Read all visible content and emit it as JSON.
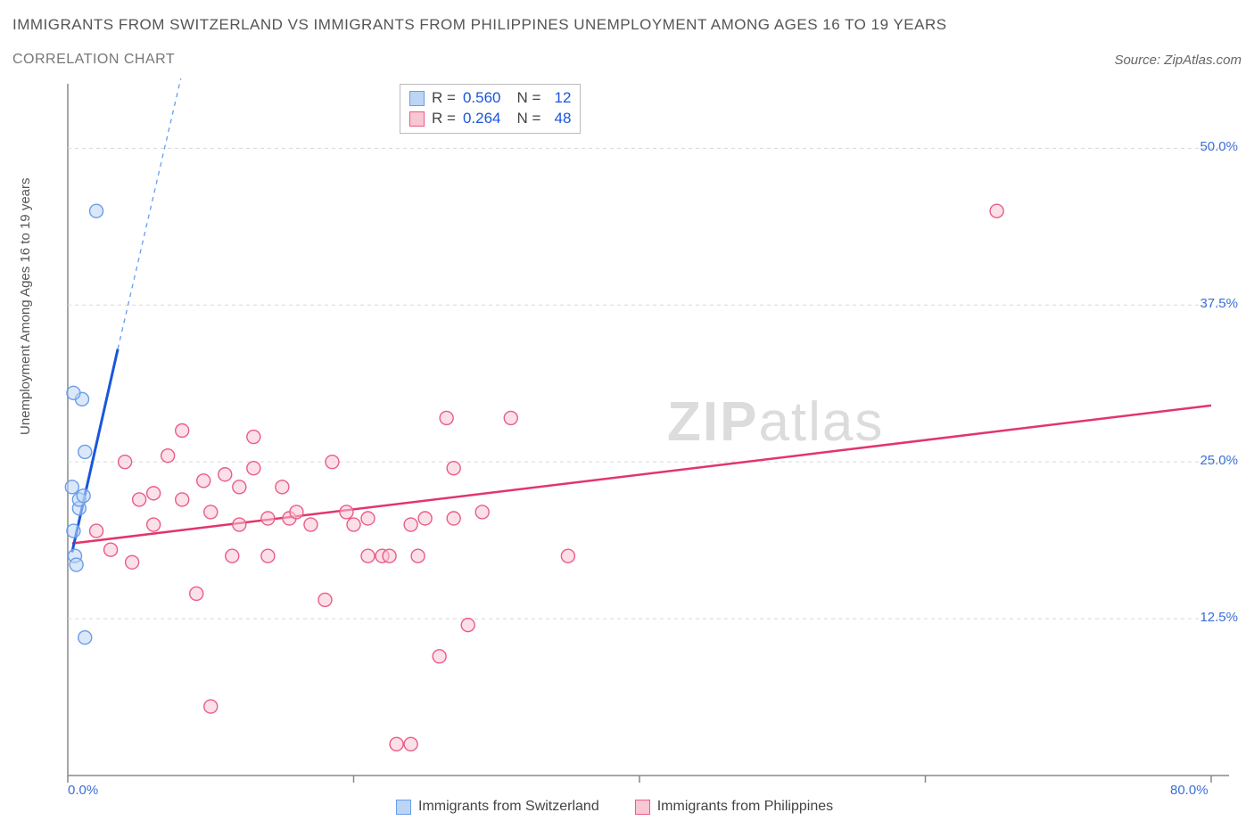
{
  "title": "IMMIGRANTS FROM SWITZERLAND VS IMMIGRANTS FROM PHILIPPINES UNEMPLOYMENT AMONG AGES 16 TO 19 YEARS",
  "subtitle": "CORRELATION CHART",
  "source_label": "Source: ZipAtlas.com",
  "y_axis_label": "Unemployment Among Ages 16 to 19 years",
  "watermark_bold": "ZIP",
  "watermark_light": "atlas",
  "chart": {
    "type": "scatter",
    "background": "#ffffff",
    "grid_color": "#d8d8d8",
    "axis_color": "#888888",
    "tick_color": "#888888",
    "label_color": "#3a6fd8",
    "xlim": [
      0,
      80
    ],
    "ylim": [
      0,
      55
    ],
    "x_ticks": [
      0,
      20,
      40,
      60,
      80
    ],
    "x_tick_labels": [
      "0.0%",
      "",
      "",
      "",
      "80.0%"
    ],
    "y_ticks": [
      12.5,
      25.0,
      37.5,
      50.0
    ],
    "y_tick_labels": [
      "12.5%",
      "25.0%",
      "37.5%",
      "50.0%"
    ],
    "marker_radius": 7.5,
    "marker_stroke_width": 1.4,
    "series": [
      {
        "name": "Immigrants from Switzerland",
        "fill": "#bcd5f5",
        "stroke": "#6a9de8",
        "fill_opacity": 0.55,
        "trend": {
          "color": "#1a56db",
          "width": 3,
          "dash_above_color": "#6a9de8",
          "x1": 0.3,
          "y1": 17.8,
          "x2": 3.5,
          "y2": 34.0,
          "dash_x2": 8.2,
          "dash_y2": 57.0
        },
        "r_label": "0.560",
        "n_label": "12",
        "points": [
          [
            0.5,
            17.5
          ],
          [
            0.4,
            19.5
          ],
          [
            0.8,
            21.3
          ],
          [
            0.8,
            22.0
          ],
          [
            1.1,
            22.3
          ],
          [
            0.3,
            23.0
          ],
          [
            1.2,
            25.8
          ],
          [
            1.0,
            30.0
          ],
          [
            0.4,
            30.5
          ],
          [
            2.0,
            45.0
          ],
          [
            1.2,
            11.0
          ],
          [
            0.6,
            16.8
          ]
        ]
      },
      {
        "name": "Immigrants from Philippines",
        "fill": "#f7c7d4",
        "stroke": "#ea5b8a",
        "fill_opacity": 0.55,
        "trend": {
          "color": "#e3356b",
          "width": 2.5,
          "x1": 0.3,
          "y1": 18.5,
          "x2": 80,
          "y2": 29.5
        },
        "r_label": "0.264",
        "n_label": "48",
        "points": [
          [
            4.0,
            25.0
          ],
          [
            5.0,
            22.0
          ],
          [
            6.0,
            20.0
          ],
          [
            6.0,
            22.5
          ],
          [
            7.0,
            25.5
          ],
          [
            8.0,
            27.5
          ],
          [
            8.0,
            22.0
          ],
          [
            9.0,
            14.5
          ],
          [
            9.5,
            23.5
          ],
          [
            10.0,
            21.0
          ],
          [
            10.0,
            5.5
          ],
          [
            11.0,
            24.0
          ],
          [
            11.5,
            17.5
          ],
          [
            12.0,
            23.0
          ],
          [
            12.0,
            20.0
          ],
          [
            13.0,
            24.5
          ],
          [
            13.0,
            27.0
          ],
          [
            14.0,
            20.5
          ],
          [
            14.0,
            17.5
          ],
          [
            15.0,
            23.0
          ],
          [
            15.5,
            20.5
          ],
          [
            16.0,
            21.0
          ],
          [
            17.0,
            20.0
          ],
          [
            18.0,
            14.0
          ],
          [
            18.5,
            25.0
          ],
          [
            19.5,
            21.0
          ],
          [
            20.0,
            20.0
          ],
          [
            21.0,
            17.5
          ],
          [
            21.0,
            20.5
          ],
          [
            22.0,
            17.5
          ],
          [
            22.5,
            17.5
          ],
          [
            23.0,
            2.5
          ],
          [
            24.0,
            2.5
          ],
          [
            24.0,
            20.0
          ],
          [
            24.5,
            17.5
          ],
          [
            25.0,
            20.5
          ],
          [
            26.0,
            9.5
          ],
          [
            27.0,
            20.5
          ],
          [
            28.0,
            12.0
          ],
          [
            29.0,
            21.0
          ],
          [
            27.0,
            24.5
          ],
          [
            26.5,
            28.5
          ],
          [
            31.0,
            28.5
          ],
          [
            35.0,
            17.5
          ],
          [
            65.0,
            45.0
          ],
          [
            3.0,
            18.0
          ],
          [
            4.5,
            17.0
          ],
          [
            2.0,
            19.5
          ]
        ]
      }
    ]
  },
  "bottom_legend": [
    {
      "label": "Immigrants from Switzerland",
      "fill": "#bcd5f5",
      "stroke": "#6a9de8"
    },
    {
      "label": "Immigrants from Philippines",
      "fill": "#f7c7d4",
      "stroke": "#ea5b8a"
    }
  ]
}
